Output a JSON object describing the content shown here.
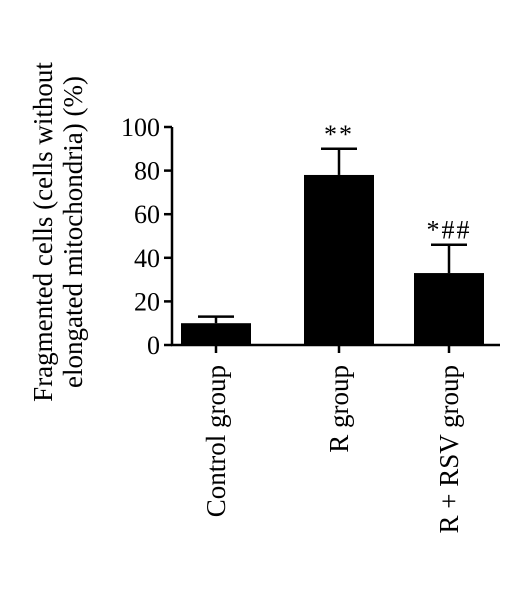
{
  "chart_data": {
    "type": "bar",
    "title": "",
    "xlabel": "",
    "ylabel_lines": [
      "Fragmented cells (cells without",
      "elongated mitochondria) (%)"
    ],
    "categories": [
      "Control group",
      "R group",
      "R + RSV group"
    ],
    "values": [
      10,
      78,
      33
    ],
    "errors": [
      3,
      12,
      13
    ],
    "annotations": [
      "",
      "**",
      "*##"
    ],
    "ylim": [
      0,
      100
    ],
    "yticks": [
      0,
      20,
      40,
      60,
      80,
      100
    ],
    "grid": false,
    "bar_color": "#000000"
  }
}
